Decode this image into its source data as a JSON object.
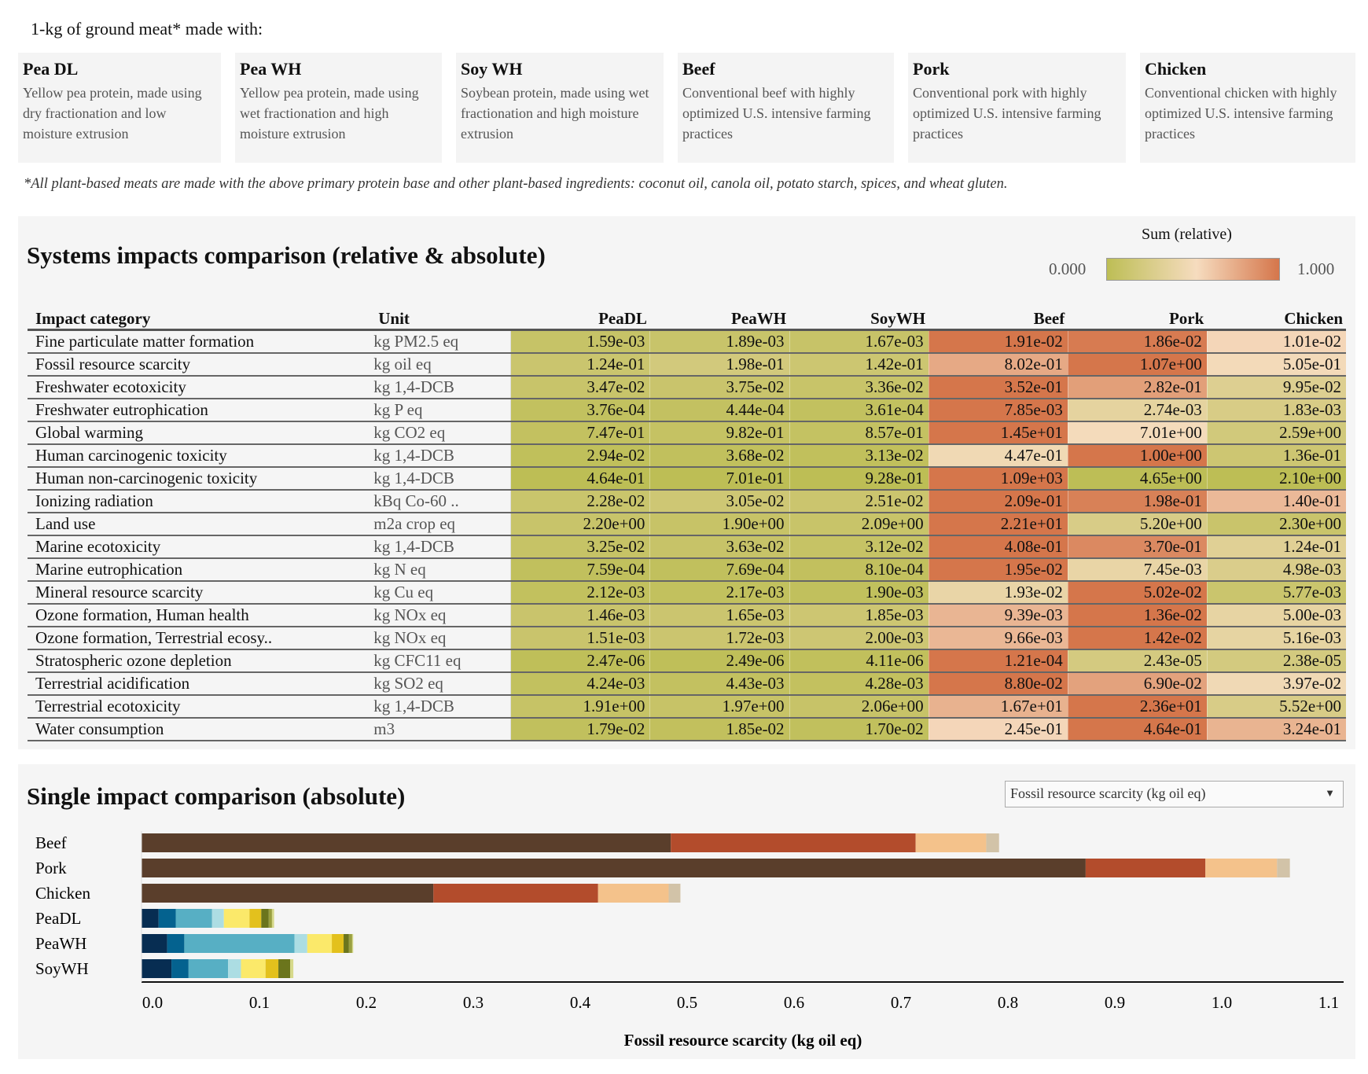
{
  "intro": "1-kg of ground meat* made with:",
  "cards": [
    {
      "title": "Pea DL",
      "desc": "Yellow pea protein, made using dry fractionation and low moisture extrusion"
    },
    {
      "title": "Pea WH",
      "desc": "Yellow pea protein, made using wet fractionation and high moisture extrusion"
    },
    {
      "title": "Soy WH",
      "desc": "Soybean protein, made using wet fractionation and high moisture extrusion"
    },
    {
      "title": "Beef",
      "desc": "Conventional beef with highly optimized U.S. intensive farming practices"
    },
    {
      "title": "Pork",
      "desc": "Conventional pork with highly optimized U.S. intensive farming practices"
    },
    {
      "title": "Chicken",
      "desc": "Conventional chicken with highly optimized U.S. intensive farming practices"
    }
  ],
  "footnote": "*All plant-based meats are made with the above primary protein base and other plant-based ingredients: coconut oil, canola oil, potato starch, spices, and wheat gluten.",
  "systems": {
    "title": "Systems impacts comparison (relative & absolute)",
    "legend": {
      "title": "Sum (relative)",
      "min": "0.000",
      "max": "1.000",
      "colors": [
        "#bdbe55",
        "#f6dcbf",
        "#d5764b"
      ]
    },
    "columns": [
      "Impact category",
      "Unit",
      "PeaDL",
      "PeaWH",
      "SoyWH",
      "Beef",
      "Pork",
      "Chicken"
    ],
    "rows": [
      {
        "name": "Fine particulate matter formation",
        "unit": "kg PM2.5 eq",
        "values": [
          "1.59e-03",
          "1.89e-03",
          "1.67e-03",
          "1.91e-02",
          "1.86e-02",
          "1.01e-02"
        ]
      },
      {
        "name": "Fossil resource scarcity",
        "unit": "kg oil eq",
        "values": [
          "1.24e-01",
          "1.98e-01",
          "1.42e-01",
          "8.02e-01",
          "1.07e+00",
          "5.05e-01"
        ]
      },
      {
        "name": "Freshwater ecotoxicity",
        "unit": "kg 1,4-DCB",
        "values": [
          "3.47e-02",
          "3.75e-02",
          "3.36e-02",
          "3.52e-01",
          "2.82e-01",
          "9.95e-02"
        ]
      },
      {
        "name": "Freshwater eutrophication",
        "unit": "kg P eq",
        "values": [
          "3.76e-04",
          "4.44e-04",
          "3.61e-04",
          "7.85e-03",
          "2.74e-03",
          "1.83e-03"
        ]
      },
      {
        "name": "Global warming",
        "unit": "kg CO2 eq",
        "values": [
          "7.47e-01",
          "9.82e-01",
          "8.57e-01",
          "1.45e+01",
          "7.01e+00",
          "2.59e+00"
        ]
      },
      {
        "name": "Human carcinogenic toxicity",
        "unit": "kg 1,4-DCB",
        "values": [
          "2.94e-02",
          "3.68e-02",
          "3.13e-02",
          "4.47e-01",
          "1.00e+00",
          "1.36e-01"
        ]
      },
      {
        "name": "Human non-carcinogenic toxicity",
        "unit": "kg 1,4-DCB",
        "values": [
          "4.64e-01",
          "7.01e-01",
          "9.28e-01",
          "1.09e+03",
          "4.65e+00",
          "2.10e+00"
        ]
      },
      {
        "name": "Ionizing radiation",
        "unit": "kBq Co-60 ..",
        "values": [
          "2.28e-02",
          "3.05e-02",
          "2.51e-02",
          "2.09e-01",
          "1.98e-01",
          "1.40e-01"
        ]
      },
      {
        "name": "Land use",
        "unit": "m2a crop eq",
        "values": [
          "2.20e+00",
          "1.90e+00",
          "2.09e+00",
          "2.21e+01",
          "5.20e+00",
          "2.30e+00"
        ]
      },
      {
        "name": "Marine ecotoxicity",
        "unit": "kg 1,4-DCB",
        "values": [
          "3.25e-02",
          "3.63e-02",
          "3.12e-02",
          "4.08e-01",
          "3.70e-01",
          "1.24e-01"
        ]
      },
      {
        "name": "Marine eutrophication",
        "unit": "kg N eq",
        "values": [
          "7.59e-04",
          "7.69e-04",
          "8.10e-04",
          "1.95e-02",
          "7.45e-03",
          "4.98e-03"
        ]
      },
      {
        "name": "Mineral resource scarcity",
        "unit": "kg Cu eq",
        "values": [
          "2.12e-03",
          "2.17e-03",
          "1.90e-03",
          "1.93e-02",
          "5.02e-02",
          "5.77e-03"
        ]
      },
      {
        "name": "Ozone formation, Human health",
        "unit": "kg NOx eq",
        "values": [
          "1.46e-03",
          "1.65e-03",
          "1.85e-03",
          "9.39e-03",
          "1.36e-02",
          "5.00e-03"
        ]
      },
      {
        "name": "Ozone formation, Terrestrial ecosy..",
        "unit": "kg NOx eq",
        "values": [
          "1.51e-03",
          "1.72e-03",
          "2.00e-03",
          "9.66e-03",
          "1.42e-02",
          "5.16e-03"
        ]
      },
      {
        "name": "Stratospheric ozone depletion",
        "unit": "kg CFC11 eq",
        "values": [
          "2.47e-06",
          "2.49e-06",
          "4.11e-06",
          "1.21e-04",
          "2.43e-05",
          "2.38e-05"
        ]
      },
      {
        "name": "Terrestrial acidification",
        "unit": "kg SO2 eq",
        "values": [
          "4.24e-03",
          "4.43e-03",
          "4.28e-03",
          "8.80e-02",
          "6.90e-02",
          "3.97e-02"
        ]
      },
      {
        "name": "Terrestrial ecotoxicity",
        "unit": "kg 1,4-DCB",
        "values": [
          "1.91e+00",
          "1.97e+00",
          "2.06e+00",
          "1.67e+01",
          "2.36e+01",
          "5.52e+00"
        ]
      },
      {
        "name": "Water consumption",
        "unit": "m3",
        "values": [
          "1.79e-02",
          "1.85e-02",
          "1.70e-02",
          "2.45e-01",
          "4.64e-01",
          "3.24e-01"
        ]
      }
    ]
  },
  "single": {
    "title": "Single impact comparison (absolute)",
    "dropdown": {
      "selected": "Fossil resource scarcity (kg oil eq)",
      "icon": "triangle-down-icon"
    }
  },
  "chart_data": {
    "type": "bar",
    "orientation": "horizontal",
    "stacked": true,
    "categories": [
      "Beef",
      "Pork",
      "Chicken",
      "PeaDL",
      "PeaWH",
      "SoyWH"
    ],
    "segments": [
      {
        "values": [
          0.495,
          0.229,
          0.066,
          0.012
        ],
        "colors": [
          "#5a3e2b",
          "#b34c2c",
          "#f4c28b",
          "#d2c3a8"
        ]
      },
      {
        "values": [
          0.883,
          0.112,
          0.067,
          0.012
        ],
        "colors": [
          "#5a3e2b",
          "#b34c2c",
          "#f4c28b",
          "#d2c3a8"
        ]
      },
      {
        "values": [
          0.273,
          0.154,
          0.066,
          0.011
        ],
        "colors": [
          "#5a3e2b",
          "#b34c2c",
          "#f4c28b",
          "#d2c3a8"
        ]
      },
      {
        "values": [
          0.016,
          0.016,
          0.034,
          0.011,
          0.024,
          0.011,
          0.007,
          0.003,
          0.002
        ],
        "colors": [
          "#072d52",
          "#04628f",
          "#57afc4",
          "#acdde3",
          "#fbe96a",
          "#e3c11d",
          "#6b751c",
          "#9aa040",
          "#d6d98a"
        ]
      },
      {
        "values": [
          0.024,
          0.016,
          0.103,
          0.012,
          0.023,
          0.011,
          0.005,
          0.003,
          0.001
        ],
        "colors": [
          "#072d52",
          "#04628f",
          "#57afc4",
          "#acdde3",
          "#fbe96a",
          "#e3c11d",
          "#6b751c",
          "#9aa040",
          "#d6d98a"
        ]
      },
      {
        "values": [
          0.028,
          0.016,
          0.037,
          0.012,
          0.023,
          0.012,
          0.011,
          0.003
        ],
        "colors": [
          "#072d52",
          "#04628f",
          "#57afc4",
          "#acdde3",
          "#fbe96a",
          "#e3c11d",
          "#6b751c",
          "#d6d98a"
        ]
      }
    ],
    "xlim": [
      0,
      1.12
    ],
    "xticks": [
      "0.0",
      "0.1",
      "0.2",
      "0.3",
      "0.4",
      "0.5",
      "0.6",
      "0.7",
      "0.8",
      "0.9",
      "1.0",
      "1.1"
    ],
    "xlabel": "Fossil resource scarcity (kg oil eq)",
    "ylabel": "",
    "grid": false,
    "legend": "none"
  }
}
